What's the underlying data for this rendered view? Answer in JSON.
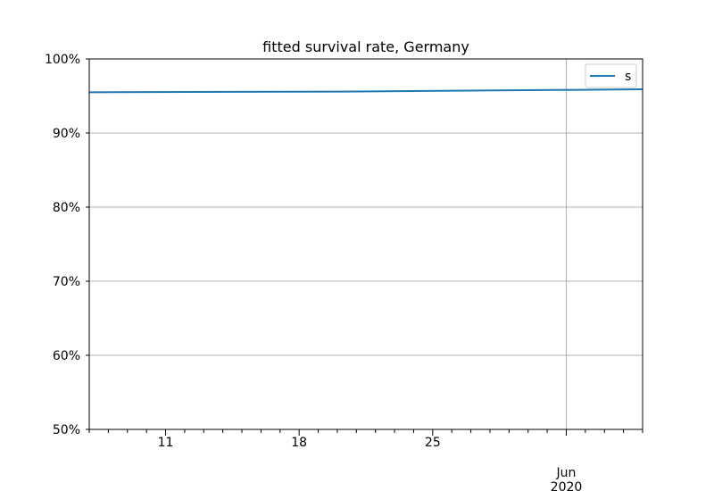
{
  "chart_data": {
    "type": "line",
    "title": "fitted survival rate, Germany",
    "xlabel": "",
    "ylabel": "",
    "x_range": [
      "2020-05-07",
      "2020-06-05"
    ],
    "ylim": [
      0.5,
      1.0
    ],
    "y_ticks": [
      0.5,
      0.6,
      0.7,
      0.8,
      0.9,
      1.0
    ],
    "y_tick_labels": [
      "50%",
      "60%",
      "70%",
      "80%",
      "90%",
      "100%"
    ],
    "x_major_ticks": [
      {
        "date": "2020-05-11",
        "label": "11"
      },
      {
        "date": "2020-05-18",
        "label": "18"
      },
      {
        "date": "2020-05-25",
        "label": "25"
      },
      {
        "date": "2020-06-01",
        "label": "Jun",
        "sublabel": "2020"
      }
    ],
    "grid": true,
    "legend_position": "top-right",
    "series": [
      {
        "name": "s",
        "color": "#1f77b4",
        "x": [
          "2020-05-07",
          "2020-05-21",
          "2020-06-05"
        ],
        "values": [
          0.955,
          0.956,
          0.959
        ]
      }
    ]
  }
}
